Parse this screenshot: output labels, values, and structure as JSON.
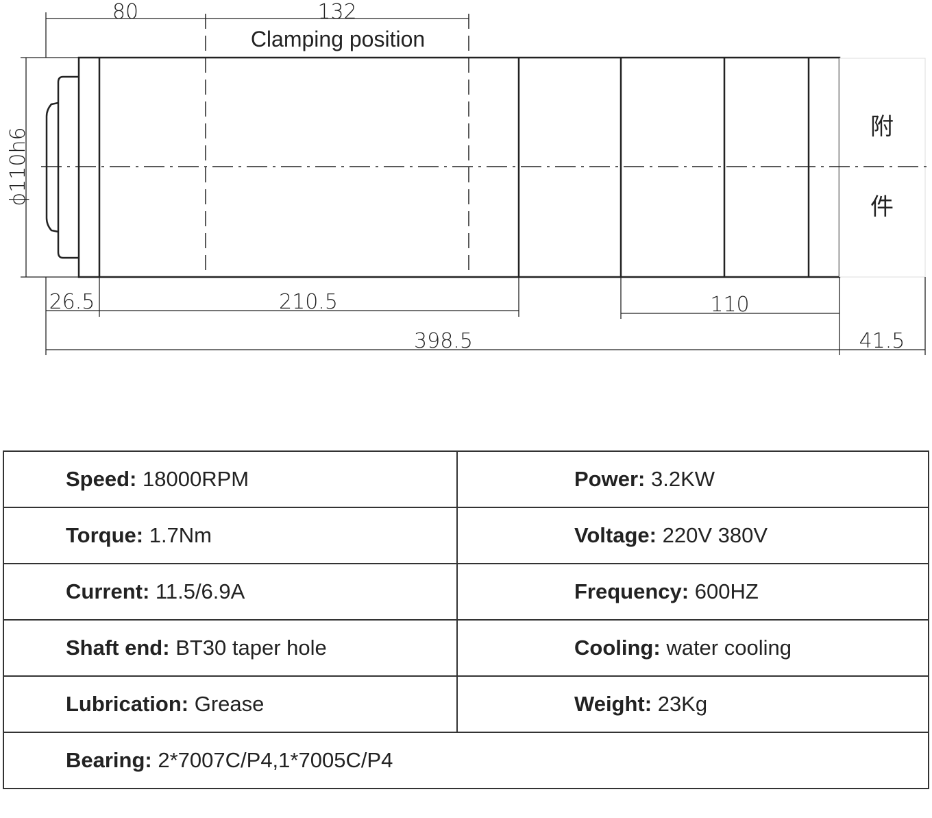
{
  "drawing": {
    "dimensions": {
      "front_length": "80",
      "clamping_length": "132",
      "nose_length": "26.5",
      "body_length": "210.5",
      "rear_length": "110",
      "total_length": "398.5",
      "attachment_length": "41.5"
    },
    "clamping_label": "Clamping position",
    "diameter_label": "ϕ110h6",
    "attachment_label": [
      "附",
      "件"
    ]
  },
  "table": {
    "rows": [
      [
        {
          "label": "Speed:",
          "value": "18000RPM"
        },
        {
          "label": "Power:",
          "value": "3.2KW"
        }
      ],
      [
        {
          "label": "Torque:",
          "value": "1.7Nm"
        },
        {
          "label": "Voltage:",
          "value": "220V 380V"
        }
      ],
      [
        {
          "label": "Current:",
          "value": "11.5/6.9A"
        },
        {
          "label": "Frequency:",
          "value": "600HZ"
        }
      ],
      [
        {
          "label": "Shaft end:",
          "value": "BT30 taper hole"
        },
        {
          "label": "Cooling:",
          "value": "water cooling"
        }
      ],
      [
        {
          "label": "Lubrication:",
          "value": "Grease"
        },
        {
          "label": "Weight:",
          "value": "23Kg"
        }
      ],
      [
        {
          "label": "Bearing:",
          "value": "2*7007C/P4,1*7005C/P4"
        }
      ]
    ]
  }
}
